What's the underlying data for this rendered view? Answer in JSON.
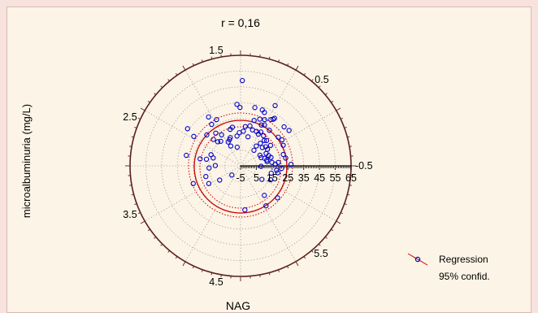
{
  "chart_data": {
    "type": "polar-scatter",
    "title": "r = 0,16",
    "xlabel": "NAG",
    "ylabel": "microalbuminuria (mg/L)",
    "angle_tick_labels": [
      "1.5",
      "0.5",
      "-0.5",
      "5.5",
      "4.5",
      "3.5",
      "2.5"
    ],
    "radial_tick_labels": [
      "-5",
      "5",
      "15",
      "25",
      "35",
      "45",
      "55",
      "65"
    ],
    "legend": {
      "position": "bottom-right",
      "entries": [
        "Regression",
        "95% confid."
      ]
    },
    "colors": {
      "points": "#0000CC",
      "regression": "#CC0000",
      "confidence": "#CC0000"
    },
    "points_angle_radius": [
      [
        1.55,
        49
      ],
      [
        1.05,
        39
      ],
      [
        0.96,
        31
      ],
      [
        0.95,
        32
      ],
      [
        0.73,
        32
      ],
      [
        0.89,
        24
      ],
      [
        1.04,
        25
      ],
      [
        1.18,
        27
      ],
      [
        1.1,
        24
      ],
      [
        1.28,
        25
      ],
      [
        1.03,
        20
      ],
      [
        0.92,
        19
      ],
      [
        0.82,
        17
      ],
      [
        1.06,
        18
      ],
      [
        1.14,
        19
      ],
      [
        1.25,
        19
      ],
      [
        1.34,
        21
      ],
      [
        1.45,
        20
      ],
      [
        1.61,
        16
      ],
      [
        1.49,
        17
      ],
      [
        1.69,
        14
      ],
      [
        0.85,
        14
      ],
      [
        0.9,
        11
      ],
      [
        0.77,
        18
      ],
      [
        0.6,
        18
      ],
      [
        0.55,
        15
      ],
      [
        0.45,
        13
      ],
      [
        0.65,
        15
      ],
      [
        0.7,
        13
      ],
      [
        0.86,
        8
      ],
      [
        0.3,
        11
      ],
      [
        0.35,
        14
      ],
      [
        0.16,
        12
      ],
      [
        0.22,
        12
      ],
      [
        0.11,
        15
      ],
      [
        0.27,
        15
      ],
      [
        0.38,
        9
      ],
      [
        0.5,
        9
      ],
      [
        1.32,
        14
      ],
      [
        1.92,
        14
      ],
      [
        1.78,
        20
      ],
      [
        1.85,
        19
      ],
      [
        1.97,
        13
      ],
      [
        2.05,
        12
      ],
      [
        2.12,
        18
      ],
      [
        2.22,
        21
      ],
      [
        2.25,
        15
      ],
      [
        2.33,
        16
      ],
      [
        2.37,
        19
      ],
      [
        2.4,
        24
      ],
      [
        2.53,
        36
      ],
      [
        2.58,
        30
      ],
      [
        2.86,
        13
      ],
      [
        2.78,
        15
      ],
      [
        2.95,
        17
      ],
      [
        2.97,
        21
      ],
      [
        2.95,
        30
      ],
      [
        3.13,
        11
      ],
      [
        3.21,
        15
      ],
      [
        3.44,
        18
      ],
      [
        3.65,
        18
      ],
      [
        3.95,
        3
      ],
      [
        3.5,
        27
      ],
      [
        3.74,
        11
      ],
      [
        5.72,
        11
      ],
      [
        5.39,
        19
      ],
      [
        5.28,
        25
      ],
      [
        4.81,
        23
      ],
      [
        5.57,
        26
      ],
      [
        5.85,
        16
      ],
      [
        6.05,
        15
      ],
      [
        6.1,
        19
      ],
      [
        6.16,
        18
      ],
      [
        6.22,
        21
      ],
      [
        0.05,
        17
      ],
      [
        0.09,
        19
      ],
      [
        0.26,
        23
      ],
      [
        0.17,
        24
      ],
      [
        0.03,
        27
      ],
      [
        0.45,
        25
      ],
      [
        0.56,
        26
      ],
      [
        0.65,
        25
      ],
      [
        1.09,
        28
      ],
      [
        0.99,
        30
      ],
      [
        1.15,
        32
      ],
      [
        1.63,
        34
      ],
      [
        1.2,
        33
      ],
      [
        1.33,
        33
      ],
      [
        0.63,
        33
      ],
      [
        1.58,
        32
      ],
      [
        2.05,
        28
      ],
      [
        2.18,
        27
      ],
      [
        2.15,
        32
      ],
      [
        6.26,
        8
      ],
      [
        1.75,
        7
      ],
      [
        2.03,
        9
      ]
    ]
  }
}
